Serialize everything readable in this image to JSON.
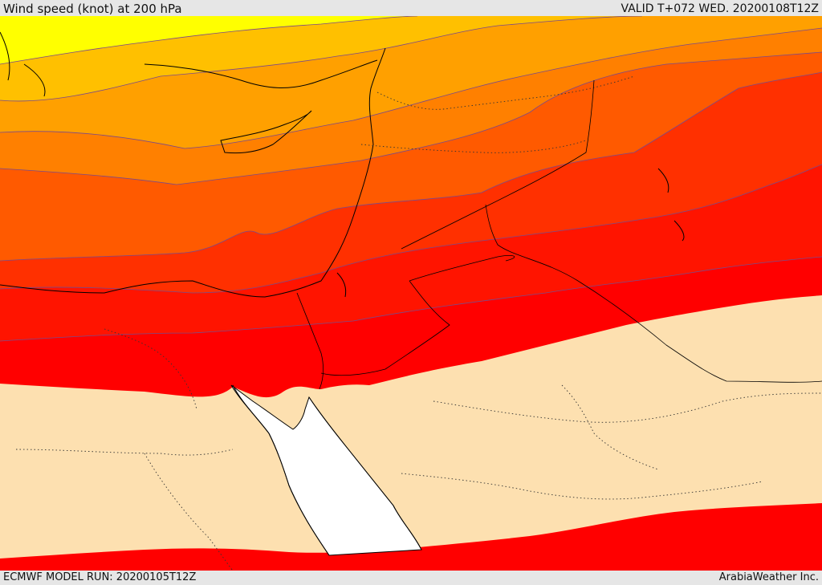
{
  "header": {
    "title": "Wind speed (knot) at 200 hPa",
    "valid": "VALID T+072 WED. 20200108T12Z"
  },
  "footer": {
    "model_run": "ECMWF MODEL RUN: 20200105T12Z",
    "credit": "ArabiaWeather Inc."
  },
  "map": {
    "field": "wind speed at 200 hPa",
    "colors": {
      "band_1": "#ffff00",
      "band_2": "#ffc000",
      "band_3": "#ffa000",
      "band_4": "#ff8000",
      "band_5": "#ff5a00",
      "band_6": "#ff3000",
      "band_7": "#ff0000",
      "low_wind": "#fde0b0",
      "sea_mask": "#ffffff",
      "contour": "#7a4a8a",
      "coastline": "#000000"
    }
  }
}
